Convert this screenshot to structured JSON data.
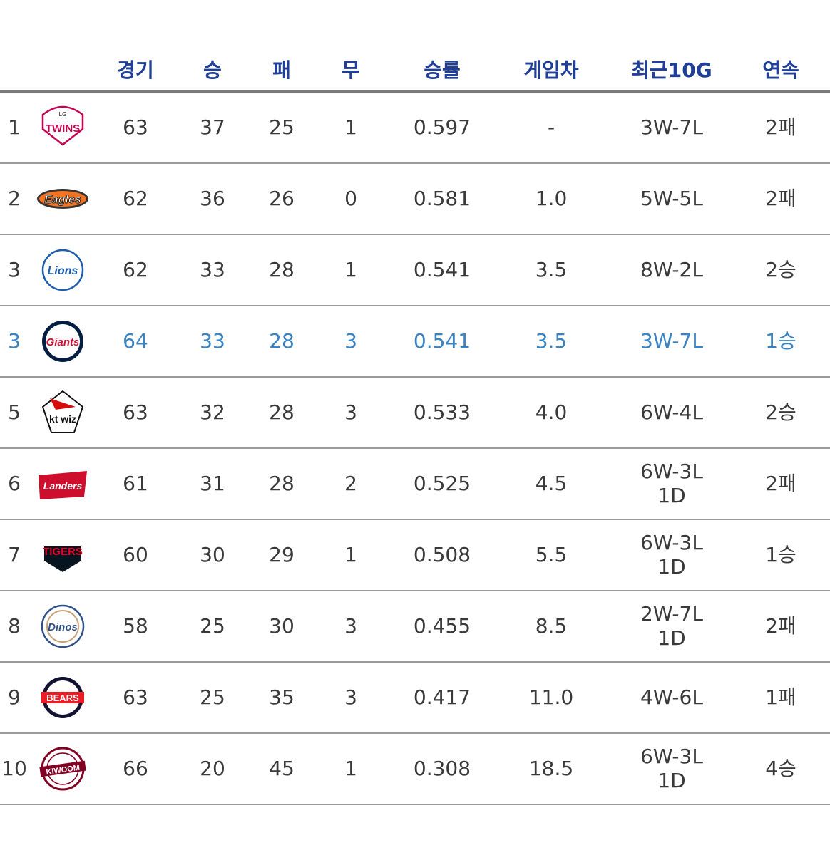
{
  "headers": [
    "경기",
    "승",
    "패",
    "무",
    "승률",
    "게임차",
    "최근10G",
    "연속"
  ],
  "rows": [
    {
      "rank": "1",
      "logo": "lg-twins-logo",
      "logo_text": "TWINS",
      "games": "63",
      "wins": "37",
      "losses": "25",
      "draws": "1",
      "pct": "0.597",
      "gb": "-",
      "last10": "3W-7L",
      "last10b": "",
      "streak": "2패",
      "highlight": false
    },
    {
      "rank": "2",
      "logo": "hanwha-eagles-logo",
      "logo_text": "Eagles",
      "games": "62",
      "wins": "36",
      "losses": "26",
      "draws": "0",
      "pct": "0.581",
      "gb": "1.0",
      "last10": "5W-5L",
      "last10b": "",
      "streak": "2패",
      "highlight": false
    },
    {
      "rank": "3",
      "logo": "samsung-lions-logo",
      "logo_text": "Lions",
      "games": "62",
      "wins": "33",
      "losses": "28",
      "draws": "1",
      "pct": "0.541",
      "gb": "3.5",
      "last10": "8W-2L",
      "last10b": "",
      "streak": "2승",
      "highlight": false
    },
    {
      "rank": "3",
      "logo": "lotte-giants-logo",
      "logo_text": "Giants",
      "games": "64",
      "wins": "33",
      "losses": "28",
      "draws": "3",
      "pct": "0.541",
      "gb": "3.5",
      "last10": "3W-7L",
      "last10b": "",
      "streak": "1승",
      "highlight": true
    },
    {
      "rank": "5",
      "logo": "kt-wiz-logo",
      "logo_text": "kt wiz",
      "games": "63",
      "wins": "32",
      "losses": "28",
      "draws": "3",
      "pct": "0.533",
      "gb": "4.0",
      "last10": "6W-4L",
      "last10b": "",
      "streak": "2승",
      "highlight": false
    },
    {
      "rank": "6",
      "logo": "ssg-landers-logo",
      "logo_text": "Landers",
      "games": "61",
      "wins": "31",
      "losses": "28",
      "draws": "2",
      "pct": "0.525",
      "gb": "4.5",
      "last10": "6W-3L",
      "last10b": "1D",
      "streak": "2패",
      "highlight": false
    },
    {
      "rank": "7",
      "logo": "kia-tigers-logo",
      "logo_text": "TIGERS",
      "games": "60",
      "wins": "30",
      "losses": "29",
      "draws": "1",
      "pct": "0.508",
      "gb": "5.5",
      "last10": "6W-3L",
      "last10b": "1D",
      "streak": "1승",
      "highlight": false
    },
    {
      "rank": "8",
      "logo": "nc-dinos-logo",
      "logo_text": "Dinos",
      "games": "58",
      "wins": "25",
      "losses": "30",
      "draws": "3",
      "pct": "0.455",
      "gb": "8.5",
      "last10": "2W-7L",
      "last10b": "1D",
      "streak": "2패",
      "highlight": false
    },
    {
      "rank": "9",
      "logo": "doosan-bears-logo",
      "logo_text": "BEARS",
      "games": "63",
      "wins": "25",
      "losses": "35",
      "draws": "3",
      "pct": "0.417",
      "gb": "11.0",
      "last10": "4W-6L",
      "last10b": "",
      "streak": "1패",
      "highlight": false
    },
    {
      "rank": "10",
      "logo": "kiwoom-heroes-logo",
      "logo_text": "KIWOOM",
      "games": "66",
      "wins": "20",
      "losses": "45",
      "draws": "1",
      "pct": "0.308",
      "gb": "18.5",
      "last10": "6W-3L",
      "last10b": "1D",
      "streak": "4승",
      "highlight": false
    }
  ],
  "colors": {
    "header": "#1f3f98",
    "text": "#3a3a3a",
    "highlight": "#3a83c2",
    "divider": "#9a9a9a"
  }
}
